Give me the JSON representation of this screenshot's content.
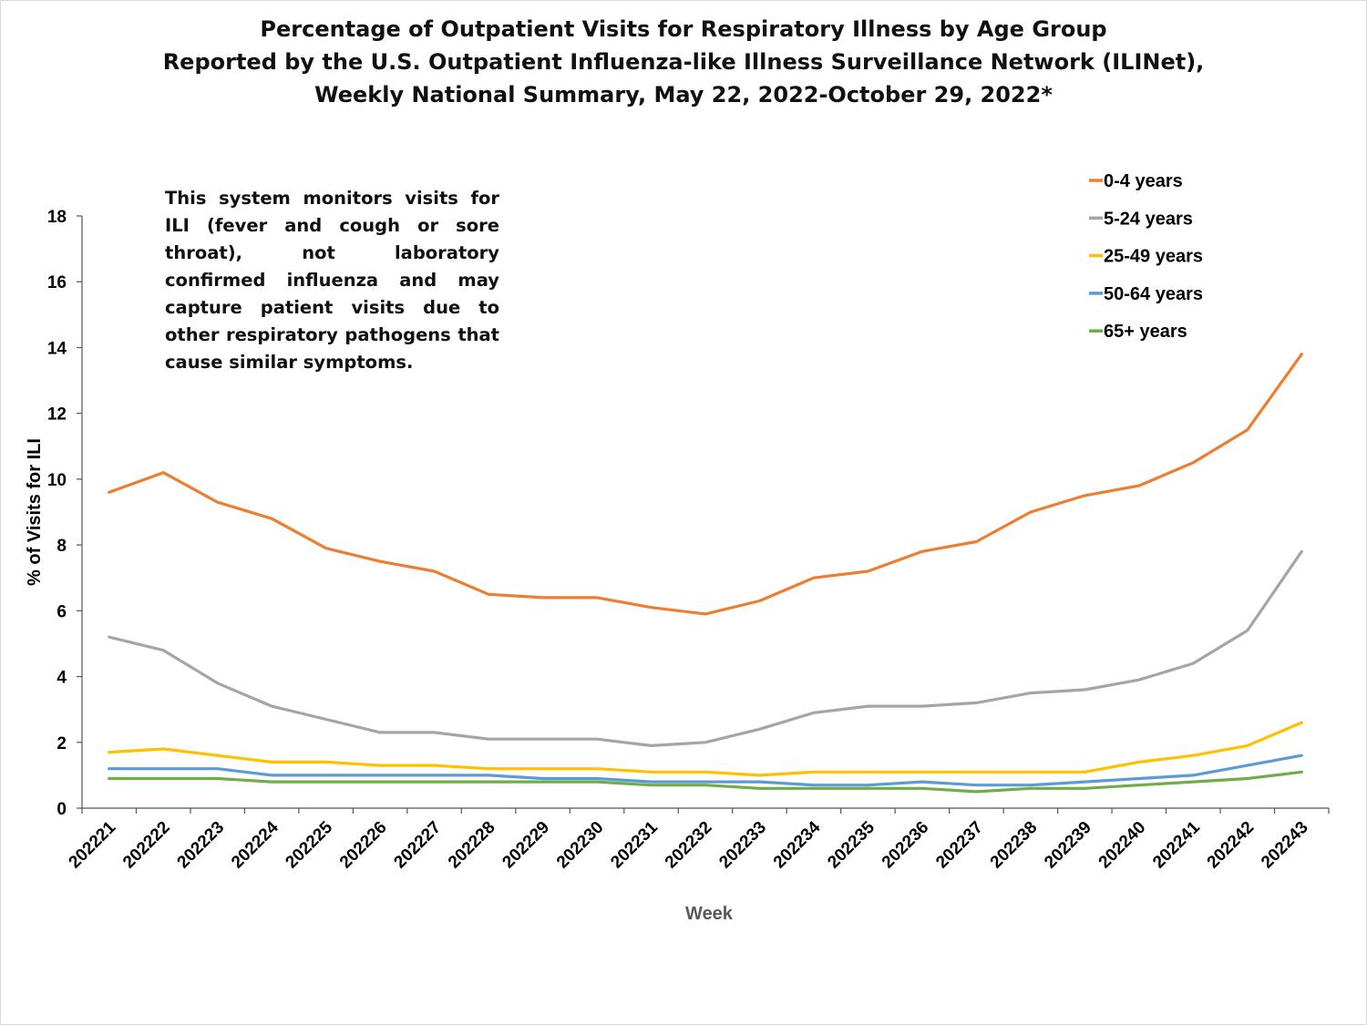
{
  "chart_data": {
    "type": "line",
    "title_lines": [
      "Percentage of Outpatient Visits for Respiratory Illness by Age Group",
      "Reported by the U.S. Outpatient Influenza-like Illness Surveillance Network (ILINet),",
      "Weekly National Summary, May 22, 2022-October 29, 2022*"
    ],
    "note": "This system monitors visits for ILI (fever and cough or sore throat), not laboratory confirmed influenza and may capture patient visits due to other respiratory pathogens that cause similar symptoms.",
    "xlabel": "Week",
    "ylabel": "% of Visits for ILI",
    "ylim": [
      0,
      18
    ],
    "yticks": [
      0,
      2,
      4,
      6,
      8,
      10,
      12,
      14,
      16,
      18
    ],
    "grid": false,
    "legend_position": "top-right",
    "categories": [
      "202221",
      "202222",
      "202223",
      "202224",
      "202225",
      "202226",
      "202227",
      "202228",
      "202229",
      "202230",
      "202231",
      "202232",
      "202233",
      "202234",
      "202235",
      "202236",
      "202237",
      "202238",
      "202239",
      "202240",
      "202241",
      "202242",
      "202243"
    ],
    "series": [
      {
        "name": "0-4 years",
        "color": "#ED7D31",
        "values": [
          9.6,
          10.2,
          9.3,
          8.8,
          7.9,
          7.5,
          7.2,
          6.5,
          6.4,
          6.4,
          6.1,
          5.9,
          6.3,
          7.0,
          7.2,
          7.8,
          8.1,
          9.0,
          9.5,
          9.8,
          10.5,
          11.5,
          13.8
        ]
      },
      {
        "name": "5-24 years",
        "color": "#A5A5A5",
        "values": [
          5.2,
          4.8,
          3.8,
          3.1,
          2.7,
          2.3,
          2.3,
          2.1,
          2.1,
          2.1,
          1.9,
          2.0,
          2.4,
          2.9,
          3.1,
          3.1,
          3.2,
          3.5,
          3.6,
          3.9,
          4.4,
          5.4,
          7.8
        ]
      },
      {
        "name": "25-49 years",
        "color": "#FFC000",
        "values": [
          1.7,
          1.8,
          1.6,
          1.4,
          1.4,
          1.3,
          1.3,
          1.2,
          1.2,
          1.2,
          1.1,
          1.1,
          1.0,
          1.1,
          1.1,
          1.1,
          1.1,
          1.1,
          1.1,
          1.4,
          1.6,
          1.9,
          2.6
        ]
      },
      {
        "name": "50-64 years",
        "color": "#5B9BD5",
        "values": [
          1.2,
          1.2,
          1.2,
          1.0,
          1.0,
          1.0,
          1.0,
          1.0,
          0.9,
          0.9,
          0.8,
          0.8,
          0.8,
          0.7,
          0.7,
          0.8,
          0.7,
          0.7,
          0.8,
          0.9,
          1.0,
          1.3,
          1.6
        ]
      },
      {
        "name": "65+ years",
        "color": "#70AD47",
        "values": [
          0.9,
          0.9,
          0.9,
          0.8,
          0.8,
          0.8,
          0.8,
          0.8,
          0.8,
          0.8,
          0.7,
          0.7,
          0.6,
          0.6,
          0.6,
          0.6,
          0.5,
          0.6,
          0.6,
          0.7,
          0.8,
          0.9,
          1.1
        ]
      }
    ]
  }
}
